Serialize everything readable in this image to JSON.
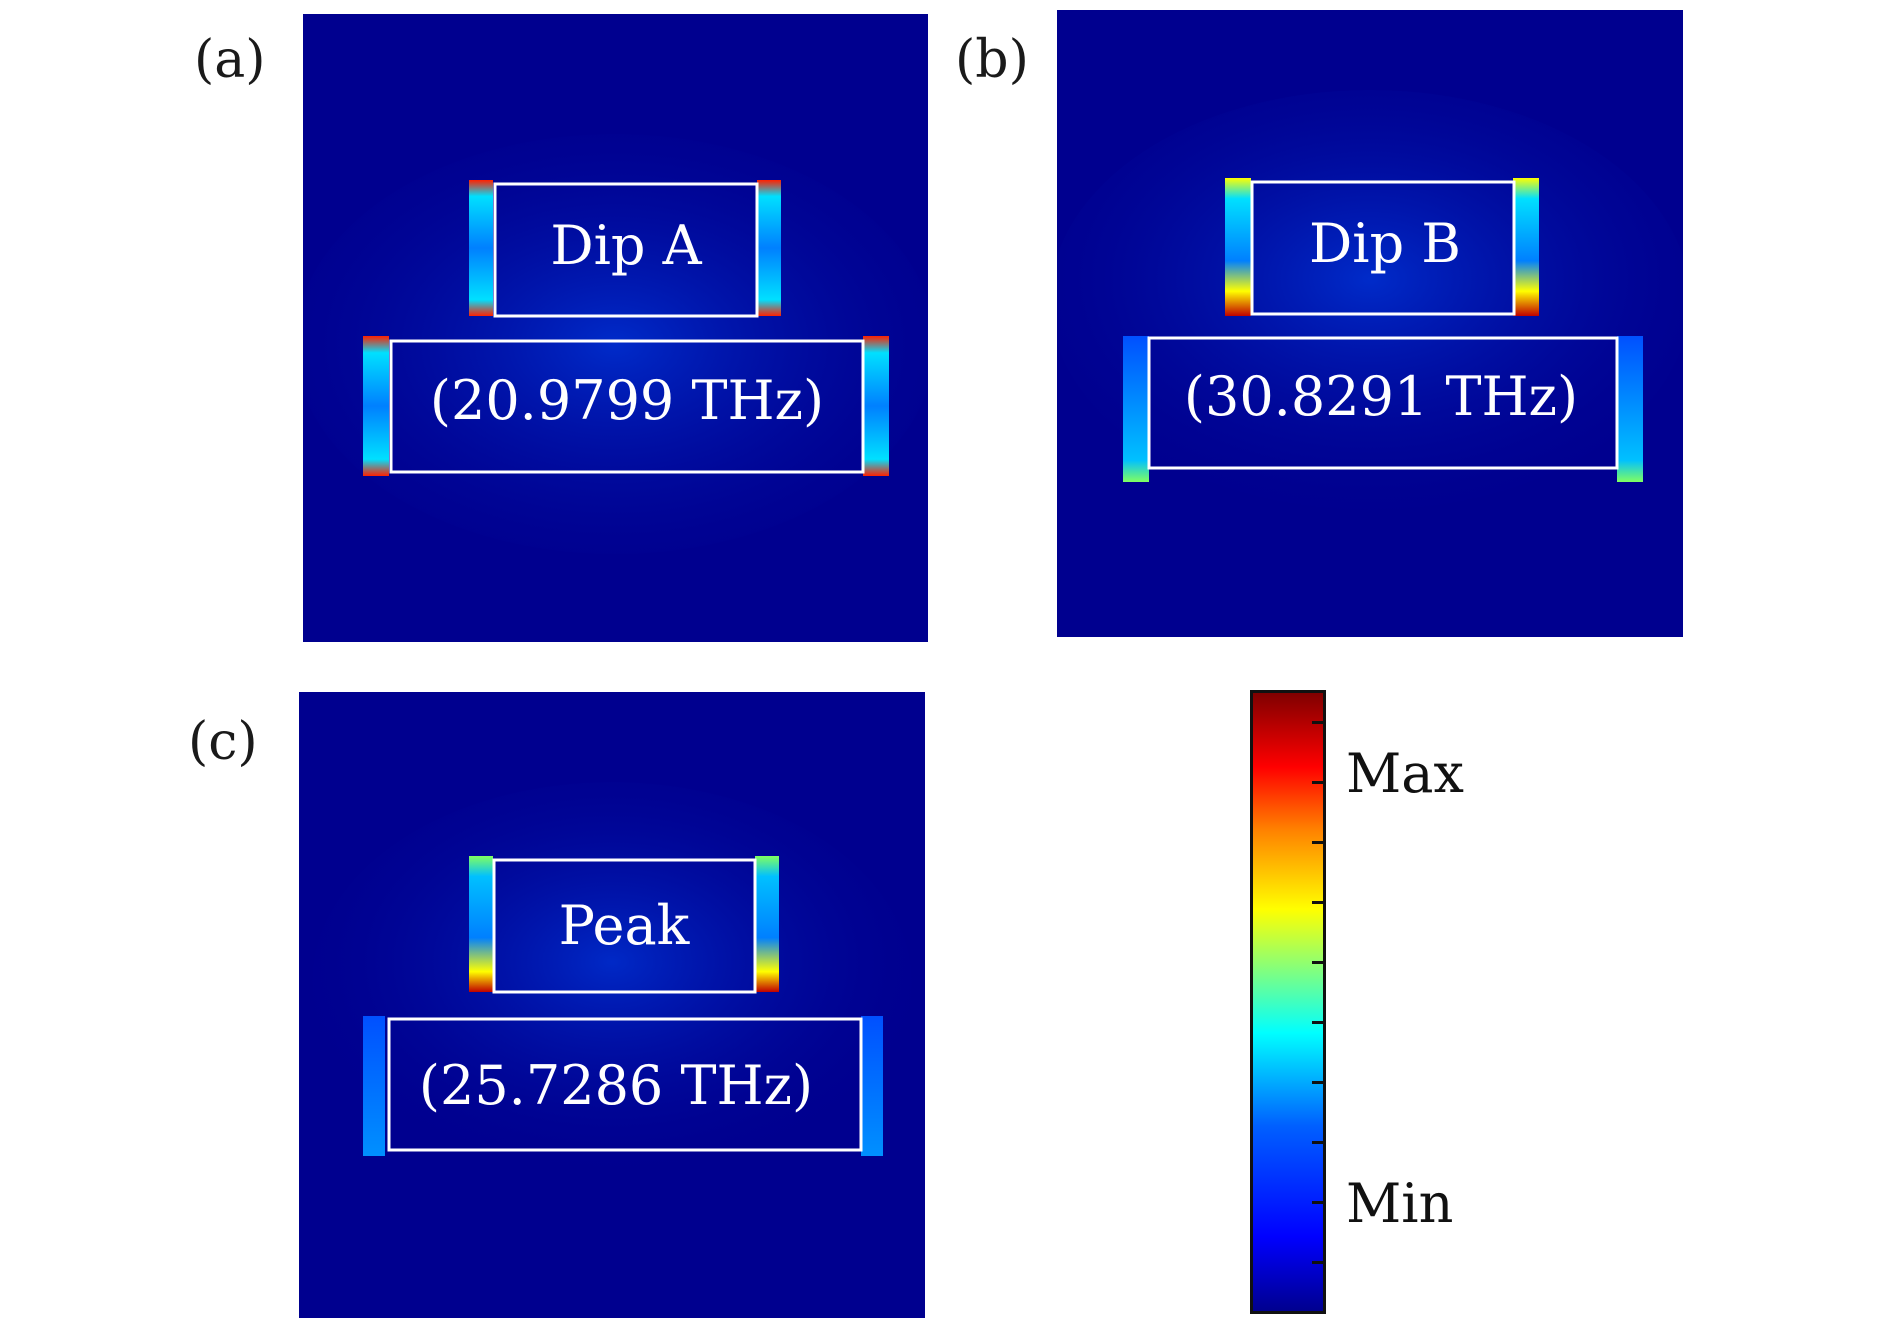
{
  "panels": [
    {
      "label": "(a)",
      "mode": "Dip A",
      "freq": "(20.9799 THz)"
    },
    {
      "label": "(b)",
      "mode": "Dip B",
      "freq": "(30.8291 THz)"
    },
    {
      "label": "(c)",
      "mode": "Peak",
      "freq": "(25.7286 THz)"
    }
  ],
  "colorbar": {
    "max_label": "Max",
    "min_label": "Min"
  },
  "colors": {
    "background_field": "#00008f",
    "outline": "#ffffff",
    "hot": "#ff0000",
    "warm": "#ffff00",
    "mid": "#00ffff"
  }
}
